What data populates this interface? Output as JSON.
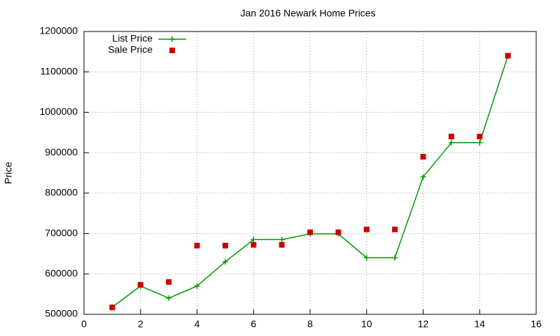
{
  "chart_data": {
    "type": "line",
    "title": "Jan 2016 Newark Home Prices",
    "y_label": "Price",
    "x": [
      1,
      2,
      3,
      4,
      5,
      6,
      7,
      8,
      9,
      10,
      11,
      12,
      13,
      14,
      15
    ],
    "series": [
      {
        "name": "List Price",
        "color": "#009900",
        "mode": "lines+markers",
        "values": [
          518000,
          570000,
          540000,
          570000,
          630000,
          685000,
          685000,
          699000,
          699000,
          640000,
          640000,
          840000,
          925000,
          925000,
          1140000
        ]
      },
      {
        "name": "Sale Price",
        "color": "#cc0000",
        "mode": "markers",
        "values": [
          517000,
          573000,
          580000,
          670000,
          670000,
          672000,
          672000,
          703000,
          703000,
          710000,
          710000,
          890000,
          940000,
          940000,
          1140000
        ]
      }
    ],
    "xlim": [
      0,
      16
    ],
    "xticks": [
      0,
      2,
      4,
      6,
      8,
      10,
      12,
      14,
      16
    ],
    "ylim": [
      500000,
      1200000
    ],
    "yticks": [
      500000,
      600000,
      700000,
      800000,
      900000,
      1000000,
      1100000,
      1200000
    ],
    "grid": true,
    "legend": "top-left"
  }
}
